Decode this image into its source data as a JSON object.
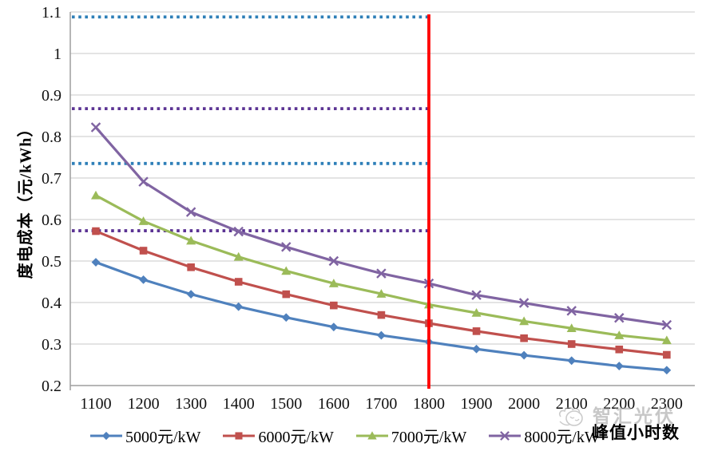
{
  "chart_data": {
    "type": "line",
    "x": [
      1100,
      1200,
      1300,
      1400,
      1500,
      1600,
      1700,
      1800,
      1900,
      2000,
      2100,
      2200,
      2300
    ],
    "series": [
      {
        "name": "5000元/kW",
        "color": "#4F81BD",
        "marker": "diamond",
        "values": [
          0.497,
          0.455,
          0.42,
          0.39,
          0.364,
          0.341,
          0.321,
          0.305,
          0.288,
          0.273,
          0.26,
          0.247,
          0.237
        ]
      },
      {
        "name": "6000元/kW",
        "color": "#C0504D",
        "marker": "square",
        "values": [
          0.572,
          0.525,
          0.485,
          0.45,
          0.42,
          0.393,
          0.37,
          0.35,
          0.331,
          0.314,
          0.3,
          0.287,
          0.274
        ]
      },
      {
        "name": "7000元/kW",
        "color": "#9BBB59",
        "marker": "triangle",
        "values": [
          0.658,
          0.596,
          0.549,
          0.51,
          0.476,
          0.446,
          0.421,
          0.395,
          0.375,
          0.355,
          0.338,
          0.321,
          0.309
        ]
      },
      {
        "name": "8000元/kW",
        "color": "#8064A2",
        "marker": "x",
        "values": [
          0.822,
          0.691,
          0.618,
          0.571,
          0.534,
          0.5,
          0.47,
          0.446,
          0.418,
          0.399,
          0.38,
          0.363,
          0.346
        ]
      }
    ],
    "reference_lines": [
      {
        "value": 1.088,
        "color": "#2E7FB8",
        "style": "dotted",
        "x_end": 1800
      },
      {
        "value": 0.867,
        "color": "#5C3494",
        "style": "dotted",
        "x_end": 1800
      },
      {
        "value": 0.735,
        "color": "#2E7FB8",
        "style": "dotted",
        "x_end": 1800
      },
      {
        "value": 0.573,
        "color": "#5C3494",
        "style": "dotted",
        "x_end": 1800
      }
    ],
    "vertical_line": {
      "x": 1800,
      "color": "#FF0000"
    },
    "title": "",
    "ylabel": "度电成本（元/kWh）",
    "xlabel": "峰值小时数",
    "ylim": [
      0.2,
      1.1
    ],
    "yticks": [
      0.2,
      0.3,
      0.4,
      0.5,
      0.6,
      0.7,
      0.8,
      0.9,
      1.0,
      1.1
    ],
    "ytick_labels": [
      "0.2",
      "0.3",
      "0.4",
      "0.5",
      "0.6",
      "0.7",
      "0.8",
      "0.9",
      "1",
      "1.1"
    ],
    "grid": "horizontal",
    "legend_position": "bottom",
    "axis_color": "#9E9E9E",
    "grid_color": "#D3D3D3"
  },
  "watermark": {
    "text": "智汇光伏"
  }
}
